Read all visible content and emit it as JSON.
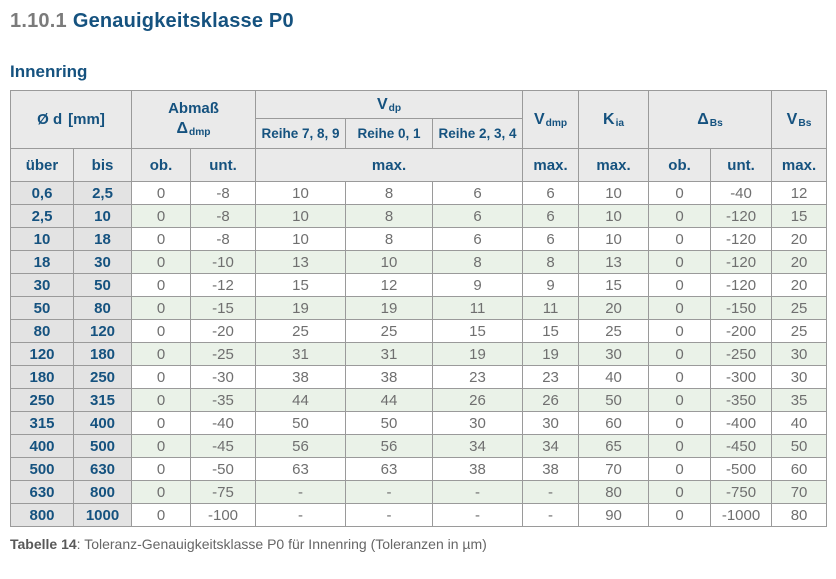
{
  "page": {
    "section_number": "1.10.1",
    "section_title": "Genauigkeitsklasse P0",
    "subtitle": "Innenring"
  },
  "caption": {
    "label": "Tabelle 14",
    "text": ": Toleranz-Genauigkeitsklasse P0 für Innenring (Toleranzen in µm)"
  },
  "colors": {
    "accent": "#15527f",
    "text-gray": "#6f6f6f",
    "title-gray": "#7b7b7b",
    "grid": "#9a9a9a",
    "head-bg": "#eaeaea",
    "dim-bg": "#e3e3e3",
    "row-green": "#eaf2e8",
    "caption-gray": "#666666"
  },
  "table": {
    "header": {
      "od_label": "Ø d",
      "od_unit": "[mm]",
      "abmass_label": "Abmaß",
      "abmass_symbol": "Δ",
      "abmass_sub": "dmp",
      "vdp_main": "V",
      "vdp_sub": "dp",
      "reihe_789": "Reihe 7, 8, 9",
      "reihe_01": "Reihe 0, 1",
      "reihe_234": "Reihe 2, 3, 4",
      "vdmp_main": "V",
      "vdmp_sub": "dmp",
      "kia_main": "K",
      "kia_sub": "ia",
      "dbs_main": "Δ",
      "dbs_sub": "Bs",
      "vbs_main": "V",
      "vbs_sub": "Bs",
      "sub_row": [
        "über",
        "bis",
        "ob.",
        "unt.",
        "max.",
        "max.",
        "max.",
        "ob.",
        "unt.",
        "max."
      ]
    },
    "rows": [
      [
        "0,6",
        "2,5",
        "0",
        "-8",
        "10",
        "8",
        "6",
        "6",
        "10",
        "0",
        "-40",
        "12"
      ],
      [
        "2,5",
        "10",
        "0",
        "-8",
        "10",
        "8",
        "6",
        "6",
        "10",
        "0",
        "-120",
        "15"
      ],
      [
        "10",
        "18",
        "0",
        "-8",
        "10",
        "8",
        "6",
        "6",
        "10",
        "0",
        "-120",
        "20"
      ],
      [
        "18",
        "30",
        "0",
        "-10",
        "13",
        "10",
        "8",
        "8",
        "13",
        "0",
        "-120",
        "20"
      ],
      [
        "30",
        "50",
        "0",
        "-12",
        "15",
        "12",
        "9",
        "9",
        "15",
        "0",
        "-120",
        "20"
      ],
      [
        "50",
        "80",
        "0",
        "-15",
        "19",
        "19",
        "11",
        "11",
        "20",
        "0",
        "-150",
        "25"
      ],
      [
        "80",
        "120",
        "0",
        "-20",
        "25",
        "25",
        "15",
        "15",
        "25",
        "0",
        "-200",
        "25"
      ],
      [
        "120",
        "180",
        "0",
        "-25",
        "31",
        "31",
        "19",
        "19",
        "30",
        "0",
        "-250",
        "30"
      ],
      [
        "180",
        "250",
        "0",
        "-30",
        "38",
        "38",
        "23",
        "23",
        "40",
        "0",
        "-300",
        "30"
      ],
      [
        "250",
        "315",
        "0",
        "-35",
        "44",
        "44",
        "26",
        "26",
        "50",
        "0",
        "-350",
        "35"
      ],
      [
        "315",
        "400",
        "0",
        "-40",
        "50",
        "50",
        "30",
        "30",
        "60",
        "0",
        "-400",
        "40"
      ],
      [
        "400",
        "500",
        "0",
        "-45",
        "56",
        "56",
        "34",
        "34",
        "65",
        "0",
        "-450",
        "50"
      ],
      [
        "500",
        "630",
        "0",
        "-50",
        "63",
        "63",
        "38",
        "38",
        "70",
        "0",
        "-500",
        "60"
      ],
      [
        "630",
        "800",
        "0",
        "-75",
        "-",
        "-",
        "-",
        "-",
        "80",
        "0",
        "-750",
        "70"
      ],
      [
        "800",
        "1000",
        "0",
        "-100",
        "-",
        "-",
        "-",
        "-",
        "90",
        "0",
        "-1000",
        "80"
      ]
    ]
  }
}
